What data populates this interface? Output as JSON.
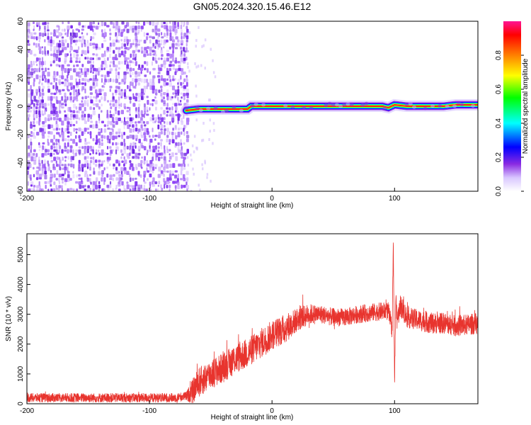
{
  "title": "GN05.2024.320.15.46.E12",
  "chart_data": [
    {
      "type": "heatmap",
      "xlabel": "Height of straight line (km)",
      "ylabel": "Frequency (Hz)",
      "xlim": [
        -200,
        168
      ],
      "ylim": [
        -60,
        60
      ],
      "xticks": [
        -200,
        -100,
        0,
        100
      ],
      "yticks": [
        -60,
        -40,
        -20,
        0,
        20,
        40,
        60
      ],
      "noise_region_x": [
        -200,
        -70
      ],
      "ridge": {
        "x": [
          -70,
          -60,
          -50,
          -40,
          -30,
          -20,
          -17,
          -10,
          0,
          20,
          40,
          60,
          80,
          90,
          95,
          100,
          110,
          120,
          130,
          140,
          150,
          160,
          168
        ],
        "y": [
          -3,
          -2,
          -2,
          -2,
          -2,
          -2,
          0,
          0,
          0,
          0,
          0,
          0,
          0,
          0,
          -1,
          1,
          0,
          0,
          0,
          0,
          1,
          1,
          1
        ]
      },
      "colorbar": {
        "label": "Normalized spectral amplitude",
        "range": [
          0,
          1
        ],
        "ticks": [
          "0.0",
          "0.2",
          "0.4",
          "0.6",
          "0.8"
        ],
        "colors": [
          "#ffffff",
          "#8a2be2",
          "#0000ff",
          "#00ffff",
          "#00ff00",
          "#ffff00",
          "#ff8000",
          "#ff0000",
          "#ff1493"
        ]
      },
      "grid": false,
      "legend": "none"
    },
    {
      "type": "line",
      "xlabel": "Height of straight line (km)",
      "ylabel": "SNR (10 * v/v)",
      "xlim": [
        -200,
        168
      ],
      "ylim": [
        0,
        5700
      ],
      "xticks": [
        -200,
        -100,
        0,
        100
      ],
      "yticks": [
        0,
        1000,
        2000,
        3000,
        4000,
        5000
      ],
      "color": "#e8342e",
      "series": [
        {
          "x": [
            -200,
            -180,
            -160,
            -140,
            -120,
            -100,
            -80,
            -70,
            -65,
            -60,
            -50,
            -40,
            -30,
            -20,
            -10,
            0,
            10,
            20,
            30,
            40,
            50,
            60,
            70,
            80,
            90,
            95,
            98,
            99,
            100,
            101,
            102,
            105,
            110,
            120,
            130,
            140,
            150,
            160,
            168
          ],
          "y": [
            200,
            200,
            200,
            200,
            200,
            200,
            200,
            250,
            400,
            700,
            1000,
            1200,
            1500,
            1700,
            2000,
            2300,
            2500,
            2800,
            3000,
            3000,
            2900,
            2900,
            3000,
            3050,
            3100,
            3100,
            2500,
            5400,
            700,
            3600,
            2800,
            3300,
            2900,
            2800,
            2700,
            2700,
            2600,
            2650,
            2700
          ],
          "noise_amplitude": [
            150,
            150,
            150,
            150,
            150,
            150,
            150,
            150,
            400,
            500,
            500,
            500,
            500,
            500,
            500,
            500,
            500,
            400,
            350,
            300,
            300,
            300,
            300,
            300,
            300,
            300,
            300,
            200,
            200,
            300,
            300,
            400,
            350,
            350,
            350,
            350,
            350,
            350,
            350
          ]
        }
      ],
      "grid": false,
      "legend": "none"
    }
  ]
}
